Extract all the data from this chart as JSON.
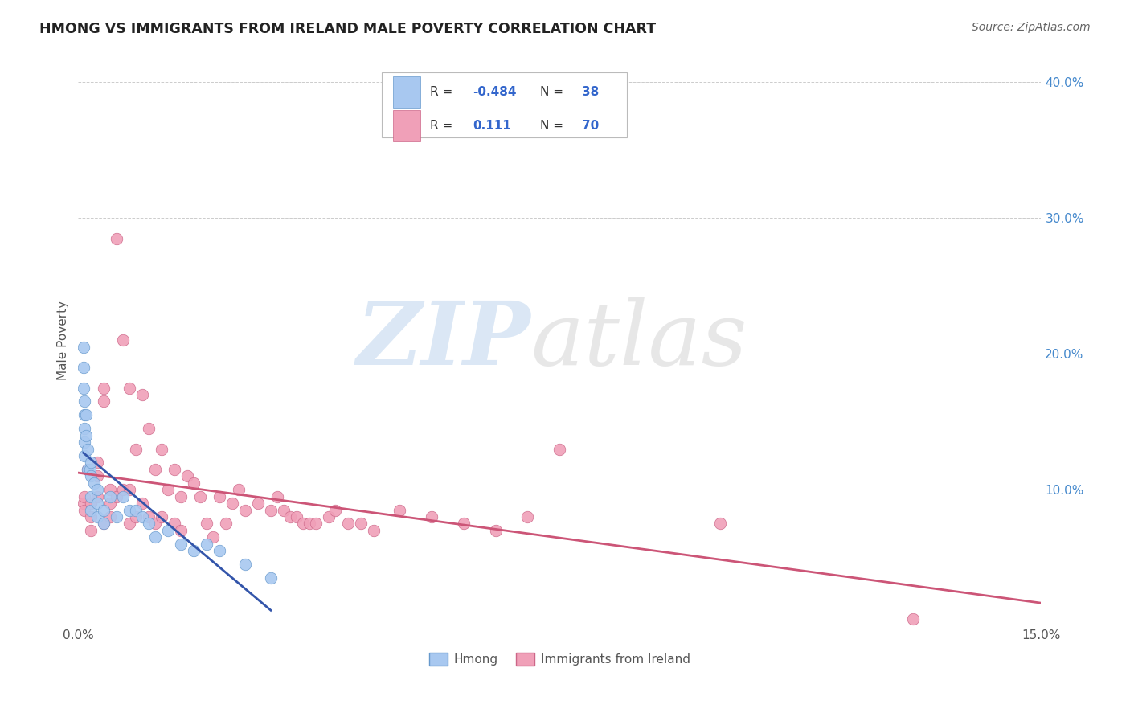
{
  "title": "HMONG VS IMMIGRANTS FROM IRELAND MALE POVERTY CORRELATION CHART",
  "source": "Source: ZipAtlas.com",
  "ylabel": "Male Poverty",
  "x_min": 0.0,
  "x_max": 0.15,
  "y_min": 0.0,
  "y_max": 0.42,
  "background_color": "#ffffff",
  "grid_color": "#cccccc",
  "hmong_color": "#a8c8f0",
  "hmong_edge_color": "#6699cc",
  "ireland_color": "#f0a0b8",
  "ireland_edge_color": "#cc6688",
  "hmong_line_color": "#3355aa",
  "ireland_line_color": "#cc5577",
  "legend_text_color": "#3366cc",
  "label_color": "#555555",
  "right_tick_color": "#4488cc",
  "hmong_x": [
    0.0008,
    0.0008,
    0.0008,
    0.001,
    0.001,
    0.001,
    0.001,
    0.001,
    0.0012,
    0.0012,
    0.0015,
    0.0015,
    0.0018,
    0.002,
    0.002,
    0.002,
    0.002,
    0.0025,
    0.003,
    0.003,
    0.003,
    0.004,
    0.004,
    0.005,
    0.006,
    0.007,
    0.008,
    0.009,
    0.01,
    0.011,
    0.012,
    0.014,
    0.016,
    0.018,
    0.02,
    0.022,
    0.026,
    0.03
  ],
  "hmong_y": [
    0.205,
    0.19,
    0.175,
    0.165,
    0.155,
    0.145,
    0.135,
    0.125,
    0.155,
    0.14,
    0.13,
    0.115,
    0.115,
    0.12,
    0.11,
    0.095,
    0.085,
    0.105,
    0.1,
    0.09,
    0.08,
    0.085,
    0.075,
    0.095,
    0.08,
    0.095,
    0.085,
    0.085,
    0.08,
    0.075,
    0.065,
    0.07,
    0.06,
    0.055,
    0.06,
    0.055,
    0.045,
    0.035
  ],
  "ireland_x": [
    0.0008,
    0.001,
    0.001,
    0.0015,
    0.002,
    0.002,
    0.002,
    0.003,
    0.003,
    0.003,
    0.004,
    0.004,
    0.004,
    0.005,
    0.005,
    0.005,
    0.006,
    0.006,
    0.007,
    0.007,
    0.008,
    0.008,
    0.008,
    0.009,
    0.009,
    0.01,
    0.01,
    0.011,
    0.011,
    0.012,
    0.012,
    0.013,
    0.013,
    0.014,
    0.015,
    0.015,
    0.016,
    0.016,
    0.017,
    0.018,
    0.019,
    0.02,
    0.021,
    0.022,
    0.023,
    0.024,
    0.025,
    0.026,
    0.028,
    0.03,
    0.031,
    0.032,
    0.033,
    0.034,
    0.035,
    0.036,
    0.037,
    0.039,
    0.04,
    0.042,
    0.044,
    0.046,
    0.05,
    0.055,
    0.06,
    0.065,
    0.07,
    0.075,
    0.1,
    0.13
  ],
  "ireland_y": [
    0.09,
    0.095,
    0.085,
    0.115,
    0.09,
    0.08,
    0.07,
    0.12,
    0.11,
    0.095,
    0.175,
    0.165,
    0.075,
    0.1,
    0.09,
    0.08,
    0.285,
    0.095,
    0.21,
    0.1,
    0.175,
    0.1,
    0.075,
    0.13,
    0.08,
    0.17,
    0.09,
    0.145,
    0.08,
    0.115,
    0.075,
    0.13,
    0.08,
    0.1,
    0.115,
    0.075,
    0.095,
    0.07,
    0.11,
    0.105,
    0.095,
    0.075,
    0.065,
    0.095,
    0.075,
    0.09,
    0.1,
    0.085,
    0.09,
    0.085,
    0.095,
    0.085,
    0.08,
    0.08,
    0.075,
    0.075,
    0.075,
    0.08,
    0.085,
    0.075,
    0.075,
    0.07,
    0.085,
    0.08,
    0.075,
    0.07,
    0.08,
    0.13,
    0.075,
    0.005
  ]
}
